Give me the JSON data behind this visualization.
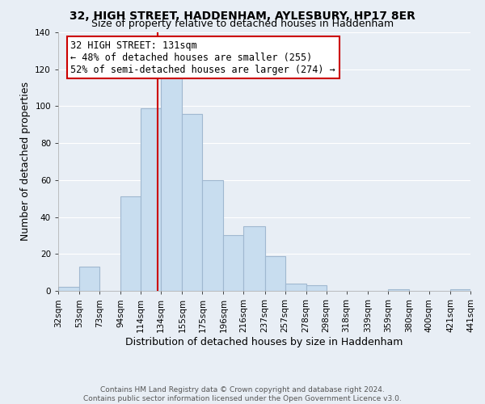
{
  "title": "32, HIGH STREET, HADDENHAM, AYLESBURY, HP17 8ER",
  "subtitle": "Size of property relative to detached houses in Haddenham",
  "xlabel": "Distribution of detached houses by size in Haddenham",
  "ylabel": "Number of detached properties",
  "bar_edges": [
    32,
    53,
    73,
    94,
    114,
    134,
    155,
    175,
    196,
    216,
    237,
    257,
    278,
    298,
    318,
    339,
    359,
    380,
    400,
    421,
    441
  ],
  "bar_heights": [
    2,
    13,
    0,
    51,
    99,
    116,
    96,
    60,
    30,
    35,
    19,
    4,
    3,
    0,
    0,
    0,
    1,
    0,
    0,
    1
  ],
  "bar_color": "#c8ddef",
  "bar_edge_color": "#a0b8d0",
  "vline_x": 131,
  "vline_color": "#cc0000",
  "annotation_line1": "32 HIGH STREET: 131sqm",
  "annotation_line2": "← 48% of detached houses are smaller (255)",
  "annotation_line3": "52% of semi-detached houses are larger (274) →",
  "annotation_box_color": "#ffffff",
  "annotation_box_edge_color": "#cc0000",
  "ylim": [
    0,
    140
  ],
  "yticks": [
    0,
    20,
    40,
    60,
    80,
    100,
    120,
    140
  ],
  "tick_labels": [
    "32sqm",
    "53sqm",
    "73sqm",
    "94sqm",
    "114sqm",
    "134sqm",
    "155sqm",
    "175sqm",
    "196sqm",
    "216sqm",
    "237sqm",
    "257sqm",
    "278sqm",
    "298sqm",
    "318sqm",
    "339sqm",
    "359sqm",
    "380sqm",
    "400sqm",
    "421sqm",
    "441sqm"
  ],
  "footer_line1": "Contains HM Land Registry data © Crown copyright and database right 2024.",
  "footer_line2": "Contains public sector information licensed under the Open Government Licence v3.0.",
  "background_color": "#e8eef5",
  "plot_bg_color": "#e8eef5",
  "grid_color": "#ffffff",
  "title_fontsize": 10,
  "subtitle_fontsize": 9,
  "axis_label_fontsize": 9,
  "tick_fontsize": 7.5,
  "annotation_fontsize": 8.5,
  "footer_fontsize": 6.5
}
